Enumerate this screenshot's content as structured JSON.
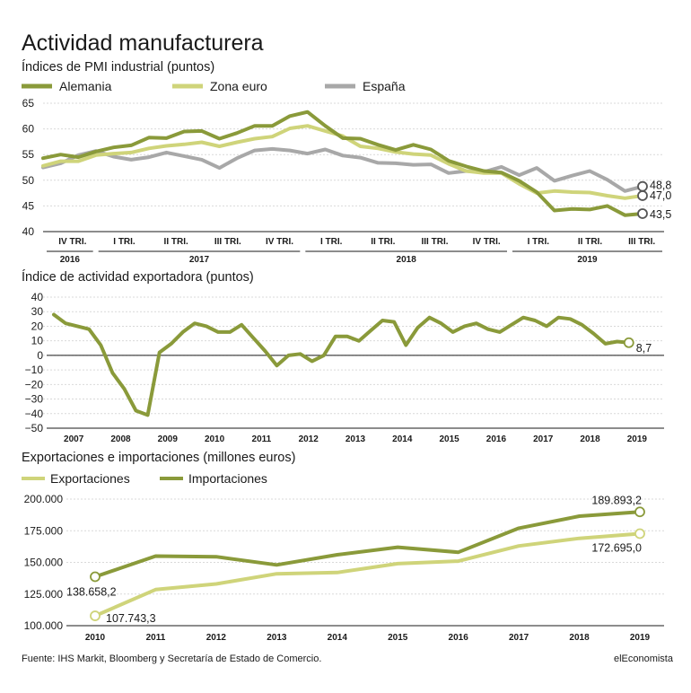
{
  "title": "Actividad manufacturera",
  "footer": {
    "source": "Fuente: IHS Markit, Bloomberg y Secretaría de Estado de Comercio.",
    "brand": "elEconomista"
  },
  "colors": {
    "alemania": "#8a9a3a",
    "zona_euro": "#cfd47a",
    "espana": "#a8a8a8",
    "export_line": "#8a9a3a",
    "exportaciones": "#cfd47a",
    "importaciones": "#8a9a3a"
  },
  "chart_data": [
    {
      "type": "line",
      "title": "Índices de PMI industrial (puntos)",
      "ylim": [
        40,
        65
      ],
      "yticks": [
        40,
        45,
        50,
        55,
        60,
        65
      ],
      "grid": true,
      "legend": "top",
      "quarters": [
        {
          "label": "IV TRI.",
          "year": "2016"
        },
        {
          "label": "I TRI.",
          "year": "2017"
        },
        {
          "label": "II TRI.",
          "year": "2017"
        },
        {
          "label": "III TRI.",
          "year": "2017"
        },
        {
          "label": "IV TRI.",
          "year": "2017"
        },
        {
          "label": "I TRI.",
          "year": "2018"
        },
        {
          "label": "II TRI.",
          "year": "2018"
        },
        {
          "label": "III TRI.",
          "year": "2018"
        },
        {
          "label": "IV TRI.",
          "year": "2018"
        },
        {
          "label": "I TRI.",
          "year": "2019"
        },
        {
          "label": "II TRI.",
          "year": "2019"
        },
        {
          "label": "III TRI.",
          "year": "2019"
        }
      ],
      "years": [
        {
          "label": "2016",
          "quarters": 1
        },
        {
          "label": "2017",
          "quarters": 4
        },
        {
          "label": "2018",
          "quarters": 4
        },
        {
          "label": "2019",
          "quarters": 3
        }
      ],
      "series": [
        {
          "key": "alemania",
          "name": "Alemania",
          "end_label": "43,5",
          "values": [
            54.3,
            55.0,
            54.5,
            55.6,
            56.4,
            56.8,
            58.3,
            58.2,
            59.5,
            59.6,
            58.1,
            59.2,
            60.6,
            60.6,
            62.5,
            63.3,
            60.6,
            58.2,
            58.1,
            56.9,
            55.9,
            56.9,
            56.0,
            53.8,
            52.7,
            51.8,
            51.5,
            49.9,
            47.7,
            44.1,
            44.4,
            44.3,
            45.0,
            43.2,
            43.5
          ]
        },
        {
          "key": "zona_euro",
          "name": "Zona euro",
          "end_label": "47,0",
          "values": [
            52.8,
            53.7,
            53.7,
            54.9,
            55.2,
            55.4,
            56.2,
            56.7,
            57.0,
            57.4,
            56.6,
            57.4,
            58.1,
            58.5,
            60.1,
            60.6,
            59.6,
            58.6,
            56.6,
            56.2,
            55.5,
            55.1,
            54.9,
            53.2,
            51.8,
            51.4,
            51.4,
            49.3,
            47.5,
            47.9,
            47.7,
            47.6,
            47.0,
            46.5,
            47.0
          ]
        },
        {
          "key": "espana",
          "name": "España",
          "end_label": "48,8",
          "values": [
            52.5,
            53.3,
            54.9,
            55.7,
            54.6,
            54.0,
            54.5,
            55.4,
            54.7,
            54.0,
            52.4,
            54.3,
            55.8,
            56.1,
            55.8,
            55.2,
            56.0,
            54.8,
            54.4,
            53.4,
            53.3,
            53.0,
            53.1,
            51.4,
            51.8,
            51.6,
            52.6,
            51.0,
            52.4,
            49.9,
            50.9,
            51.8,
            50.1,
            47.9,
            48.8
          ]
        }
      ]
    },
    {
      "type": "line",
      "title": "Índice de actividad exportadora (puntos)",
      "ylim": [
        -50,
        40
      ],
      "yticks": [
        -50,
        -40,
        -30,
        -20,
        -10,
        0,
        10,
        20,
        30,
        40
      ],
      "grid": true,
      "categories": [
        "2007",
        "2008",
        "2009",
        "2010",
        "2011",
        "2012",
        "2013",
        "2014",
        "2015",
        "2016",
        "2017",
        "2018",
        "2019"
      ],
      "end_label": "8,7",
      "points": [
        [
          2007.0,
          28
        ],
        [
          2007.25,
          22
        ],
        [
          2007.5,
          20
        ],
        [
          2007.75,
          18
        ],
        [
          2008.0,
          7
        ],
        [
          2008.25,
          -12
        ],
        [
          2008.5,
          -23
        ],
        [
          2008.75,
          -38
        ],
        [
          2009.0,
          -41
        ],
        [
          2009.25,
          2
        ],
        [
          2009.5,
          8
        ],
        [
          2009.75,
          16
        ],
        [
          2010.0,
          22
        ],
        [
          2010.25,
          20
        ],
        [
          2010.5,
          16
        ],
        [
          2010.75,
          16
        ],
        [
          2011.0,
          21
        ],
        [
          2011.25,
          12
        ],
        [
          2011.5,
          3
        ],
        [
          2011.75,
          -7
        ],
        [
          2012.0,
          0
        ],
        [
          2012.25,
          1
        ],
        [
          2012.5,
          -4
        ],
        [
          2012.75,
          0
        ],
        [
          2013.0,
          13
        ],
        [
          2013.25,
          13
        ],
        [
          2013.5,
          10
        ],
        [
          2013.75,
          17
        ],
        [
          2014.0,
          24
        ],
        [
          2014.25,
          23
        ],
        [
          2014.5,
          7
        ],
        [
          2014.75,
          19
        ],
        [
          2015.0,
          26
        ],
        [
          2015.25,
          22
        ],
        [
          2015.5,
          16
        ],
        [
          2015.75,
          20
        ],
        [
          2016.0,
          22
        ],
        [
          2016.25,
          18
        ],
        [
          2016.5,
          16
        ],
        [
          2016.75,
          21
        ],
        [
          2017.0,
          26
        ],
        [
          2017.25,
          24
        ],
        [
          2017.5,
          20
        ],
        [
          2017.75,
          26
        ],
        [
          2018.0,
          25
        ],
        [
          2018.25,
          21
        ],
        [
          2018.5,
          15
        ],
        [
          2018.75,
          8
        ],
        [
          2019.0,
          9.5
        ],
        [
          2019.25,
          8.7
        ]
      ]
    },
    {
      "type": "line",
      "title": "Exportaciones e importaciones (millones euros)",
      "ylim": [
        100000,
        200000
      ],
      "yticks": [
        {
          "value": 100000,
          "label": "100.000"
        },
        {
          "value": 125000,
          "label": "125.000"
        },
        {
          "value": 150000,
          "label": "150.000"
        },
        {
          "value": 175000,
          "label": "175.000"
        },
        {
          "value": 200000,
          "label": "200.000"
        }
      ],
      "grid": true,
      "categories": [
        "2010",
        "2011",
        "2012",
        "2013",
        "2014",
        "2015",
        "2016",
        "2017",
        "2018",
        "2019"
      ],
      "series": [
        {
          "key": "exportaciones",
          "name": "Exportaciones",
          "values": [
            107743.3,
            128500,
            133000,
            141000,
            142000,
            149000,
            151000,
            163000,
            169000,
            172695.0
          ],
          "first_label": "107.743,3",
          "last_label": "172.695,0"
        },
        {
          "key": "importaciones",
          "name": "Importaciones",
          "values": [
            138658.2,
            155000,
            154500,
            148000,
            156000,
            162000,
            158000,
            177000,
            186500,
            189893.2
          ],
          "first_label": "138.658,2",
          "last_label": "189.893,2"
        }
      ]
    }
  ]
}
